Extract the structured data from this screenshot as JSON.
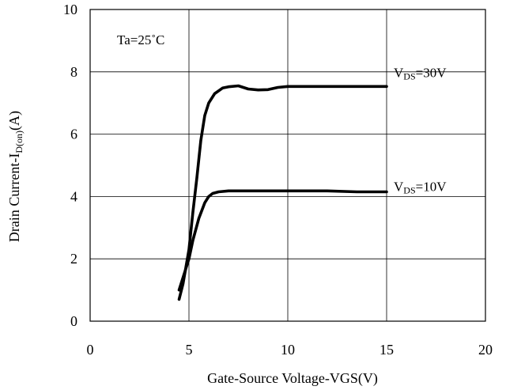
{
  "chart_data": {
    "type": "line",
    "xlabel": "Gate-Source Voltage-VGS(V)",
    "ylabel": {
      "main": "Drain Current-I",
      "sub": "D(on)",
      "tail": "(A)"
    },
    "xlim": [
      0,
      20
    ],
    "ylim": [
      0,
      10
    ],
    "xticks": [
      0,
      5,
      10,
      15,
      20
    ],
    "yticks": [
      0,
      2,
      4,
      6,
      8,
      10
    ],
    "grid": true,
    "annotation": "Ta=25˚C",
    "series": [
      {
        "label_main": "V",
        "label_sub": "DS",
        "label_tail": "=30V",
        "x": [
          4.5,
          4.7,
          5.0,
          5.2,
          5.4,
          5.6,
          5.8,
          6.0,
          6.3,
          6.7,
          7.0,
          7.5,
          8.0,
          8.5,
          9.0,
          9.5,
          10.0,
          12.0,
          15.0
        ],
        "y": [
          0.7,
          1.2,
          2.3,
          3.5,
          4.6,
          5.8,
          6.6,
          7.0,
          7.3,
          7.48,
          7.52,
          7.55,
          7.45,
          7.42,
          7.43,
          7.5,
          7.53,
          7.53,
          7.53
        ]
      },
      {
        "label_main": "V",
        "label_sub": "DS",
        "label_tail": "=10V",
        "x": [
          4.5,
          4.7,
          5.0,
          5.2,
          5.5,
          5.8,
          6.0,
          6.2,
          6.5,
          7.0,
          8.0,
          10.0,
          12.0,
          13.5,
          15.0
        ],
        "y": [
          1.0,
          1.4,
          2.0,
          2.6,
          3.3,
          3.8,
          4.0,
          4.1,
          4.15,
          4.18,
          4.18,
          4.18,
          4.18,
          4.15,
          4.15
        ]
      }
    ]
  }
}
